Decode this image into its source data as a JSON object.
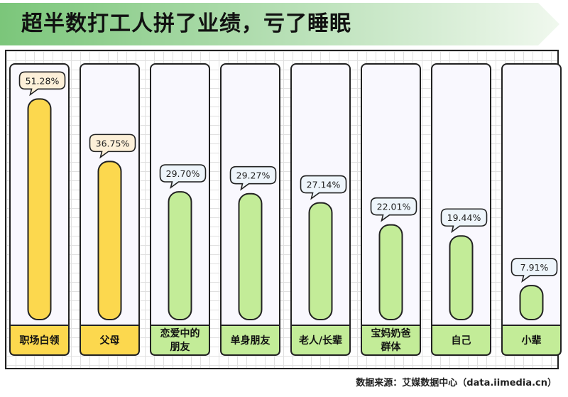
{
  "title": "超半数打工人拼了业绩，亏了睡眠",
  "source": "数据来源：艾媒数据中心（data.iimedia.cn）",
  "colors": {
    "banner_start": "#7bc67a",
    "banner_end": "#f0f8ee",
    "yellow_bar": "#fcd84e",
    "yellow_label_bg": "#fcd84e",
    "yellow_bubble_bg": "#fdf0d8",
    "green_bar": "#c3ec98",
    "green_label_bg": "#c3ec98",
    "green_bubble_bg": "#eef5fb",
    "column_bg": "#f9f8fe",
    "outline": "#222222"
  },
  "chart_data": {
    "type": "bar",
    "title": "超半数打工人拼了业绩，亏了睡眠",
    "categories": [
      "职场白领",
      "父母",
      "恋爱中的朋友",
      "单身朋友",
      "老人/长辈",
      "宝妈奶爸群体",
      "自己",
      "小辈"
    ],
    "category_lines": [
      [
        "职场白领"
      ],
      [
        "父母"
      ],
      [
        "恋爱中的",
        "朋友"
      ],
      [
        "单身朋友"
      ],
      [
        "老人/长辈"
      ],
      [
        "宝妈奶爸",
        "群体"
      ],
      [
        "自己"
      ],
      [
        "小辈"
      ]
    ],
    "values": [
      51.28,
      36.75,
      29.7,
      29.27,
      27.14,
      22.01,
      19.44,
      7.91
    ],
    "value_labels": [
      "51.28%",
      "36.75%",
      "29.70%",
      "29.27%",
      "27.14%",
      "22.01%",
      "19.44%",
      "7.91%"
    ],
    "highlight": [
      "yellow",
      "yellow",
      "green",
      "green",
      "green",
      "green",
      "green",
      "green"
    ],
    "unit": "%",
    "ylim": [
      0,
      52
    ],
    "grid": true
  }
}
